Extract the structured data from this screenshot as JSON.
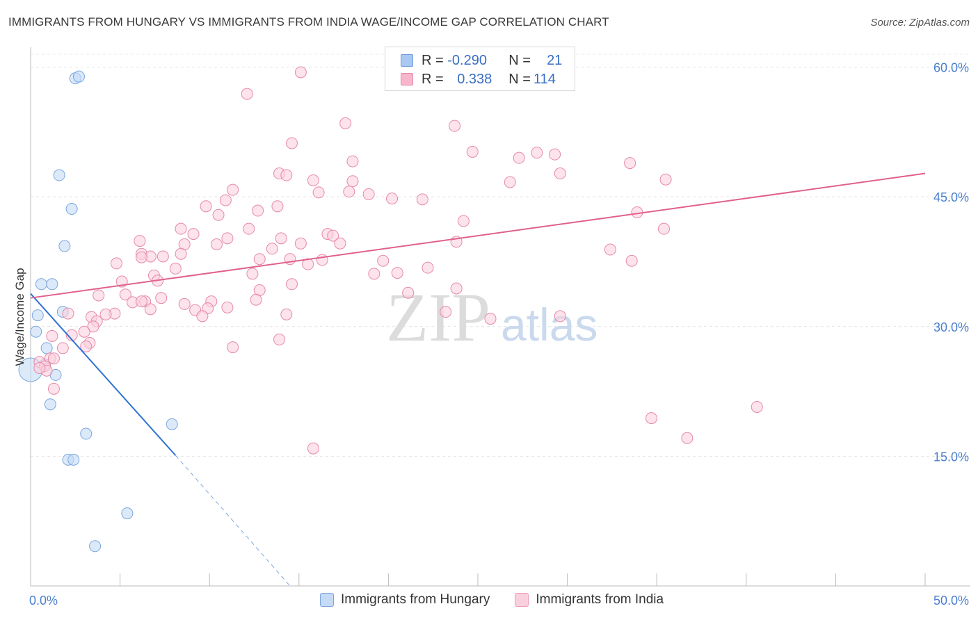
{
  "title": "IMMIGRANTS FROM HUNGARY VS IMMIGRANTS FROM INDIA WAGE/INCOME GAP CORRELATION CHART",
  "source": "Source: ZipAtlas.com",
  "watermark": {
    "zip": "ZIP",
    "atlas": "atlas"
  },
  "legend_top": {
    "rows": [
      {
        "r_label": "R =",
        "r_value": "-0.290",
        "n_label": "N =",
        "n_value": "21",
        "color": "#a9c8f2",
        "border": "#6b9ad8"
      },
      {
        "r_label": "R =",
        "r_value": "0.338",
        "n_label": "N =",
        "n_value": "114",
        "color": "#f7b6cb",
        "border": "#e58aa8"
      }
    ]
  },
  "legend_bottom": [
    {
      "label": "Immigrants from Hungary",
      "color": "#c5daf5",
      "border": "#7da6dd"
    },
    {
      "label": "Immigrants from India",
      "color": "#fbd0de",
      "border": "#eb9ab5"
    }
  ],
  "chart_data": {
    "type": "scatter",
    "title": "IMMIGRANTS FROM HUNGARY VS IMMIGRANTS FROM INDIA WAGE/INCOME GAP CORRELATION CHART",
    "xlabel": "",
    "ylabel": "Wage/Income Gap",
    "xlim": [
      0,
      50
    ],
    "ylim": [
      0,
      63
    ],
    "x_tick_labels": [
      "0.0%",
      "50.0%"
    ],
    "y_tick_labels": [
      "15.0%",
      "30.0%",
      "45.0%",
      "60.0%"
    ],
    "y_tick_values": [
      15,
      30,
      45,
      60
    ],
    "grid": true,
    "series": [
      {
        "name": "Immigrants from Hungary",
        "color": "#7aa7e0",
        "fill": "#c5daf5",
        "points": [
          [
            2.5,
            58.7
          ],
          [
            2.7,
            58.9
          ],
          [
            1.6,
            47.5
          ],
          [
            2.3,
            43.6
          ],
          [
            1.9,
            39.3
          ],
          [
            0.6,
            34.9
          ],
          [
            1.2,
            34.9
          ],
          [
            0.4,
            31.3
          ],
          [
            1.8,
            31.7
          ],
          [
            0.3,
            29.4
          ],
          [
            0.9,
            27.5
          ],
          [
            0.8,
            25.6
          ],
          [
            0.0,
            25.0
          ],
          [
            1.4,
            24.4
          ],
          [
            1.1,
            21.0
          ],
          [
            7.9,
            18.7
          ],
          [
            3.1,
            17.6
          ],
          [
            2.1,
            14.6
          ],
          [
            2.4,
            14.6
          ],
          [
            5.4,
            8.4
          ],
          [
            3.6,
            4.6
          ]
        ],
        "trend": {
          "x0": 0.0,
          "y0": 33.8,
          "x1": 8.1,
          "y1": 15.1,
          "dash_to_x": 14.5,
          "dash_to_y": 0.0
        }
      },
      {
        "name": "Immigrants from India",
        "color": "#e58aa8",
        "fill": "#fbd0de",
        "points": [
          [
            15.1,
            59.4
          ],
          [
            12.1,
            56.9
          ],
          [
            17.6,
            53.5
          ],
          [
            23.7,
            53.2
          ],
          [
            14.6,
            51.2
          ],
          [
            24.7,
            50.2
          ],
          [
            28.3,
            50.1
          ],
          [
            29.3,
            49.9
          ],
          [
            27.3,
            49.5
          ],
          [
            18.0,
            49.1
          ],
          [
            33.5,
            48.9
          ],
          [
            13.9,
            47.7
          ],
          [
            14.3,
            47.5
          ],
          [
            29.6,
            47.7
          ],
          [
            15.8,
            46.9
          ],
          [
            18.0,
            46.8
          ],
          [
            35.5,
            47.0
          ],
          [
            26.8,
            46.7
          ],
          [
            11.3,
            45.8
          ],
          [
            16.1,
            45.5
          ],
          [
            17.8,
            45.6
          ],
          [
            18.9,
            45.3
          ],
          [
            20.2,
            44.8
          ],
          [
            21.9,
            44.7
          ],
          [
            10.9,
            44.6
          ],
          [
            9.8,
            43.9
          ],
          [
            13.8,
            43.9
          ],
          [
            12.7,
            43.4
          ],
          [
            33.9,
            43.2
          ],
          [
            10.5,
            42.9
          ],
          [
            24.2,
            42.2
          ],
          [
            35.4,
            41.3
          ],
          [
            8.4,
            41.3
          ],
          [
            12.2,
            41.3
          ],
          [
            9.1,
            40.7
          ],
          [
            16.6,
            40.7
          ],
          [
            16.9,
            40.5
          ],
          [
            14.0,
            40.2
          ],
          [
            11.0,
            40.2
          ],
          [
            6.1,
            39.9
          ],
          [
            15.1,
            39.6
          ],
          [
            17.3,
            39.6
          ],
          [
            10.4,
            39.5
          ],
          [
            8.6,
            39.5
          ],
          [
            23.8,
            39.8
          ],
          [
            13.5,
            39.0
          ],
          [
            32.4,
            38.9
          ],
          [
            6.2,
            38.4
          ],
          [
            8.4,
            38.4
          ],
          [
            7.4,
            38.1
          ],
          [
            6.7,
            38.1
          ],
          [
            12.8,
            37.8
          ],
          [
            14.5,
            37.8
          ],
          [
            16.3,
            37.7
          ],
          [
            19.7,
            37.6
          ],
          [
            15.5,
            37.2
          ],
          [
            33.6,
            37.6
          ],
          [
            4.8,
            37.3
          ],
          [
            8.1,
            36.7
          ],
          [
            22.2,
            36.8
          ],
          [
            12.4,
            36.1
          ],
          [
            19.2,
            36.1
          ],
          [
            20.5,
            36.2
          ],
          [
            6.9,
            35.9
          ],
          [
            5.1,
            35.2
          ],
          [
            7.1,
            35.3
          ],
          [
            14.6,
            34.9
          ],
          [
            23.8,
            34.4
          ],
          [
            12.8,
            34.2
          ],
          [
            21.1,
            33.9
          ],
          [
            3.8,
            33.6
          ],
          [
            5.3,
            33.7
          ],
          [
            7.3,
            33.3
          ],
          [
            12.6,
            33.1
          ],
          [
            10.1,
            32.9
          ],
          [
            5.7,
            32.8
          ],
          [
            6.4,
            32.9
          ],
          [
            8.6,
            32.6
          ],
          [
            11.0,
            32.2
          ],
          [
            9.9,
            32.1
          ],
          [
            9.2,
            31.9
          ],
          [
            4.7,
            31.5
          ],
          [
            4.2,
            31.4
          ],
          [
            2.1,
            31.5
          ],
          [
            6.2,
            32.9
          ],
          [
            9.6,
            31.2
          ],
          [
            14.3,
            31.4
          ],
          [
            6.7,
            32.0
          ],
          [
            3.4,
            31.1
          ],
          [
            3.7,
            30.6
          ],
          [
            23.2,
            31.7
          ],
          [
            29.6,
            31.2
          ],
          [
            25.7,
            30.9
          ],
          [
            3.5,
            30.0
          ],
          [
            3.0,
            29.4
          ],
          [
            2.3,
            29.0
          ],
          [
            1.2,
            28.9
          ],
          [
            3.3,
            28.1
          ],
          [
            3.1,
            27.7
          ],
          [
            11.3,
            27.6
          ],
          [
            13.9,
            28.5
          ],
          [
            1.8,
            27.5
          ],
          [
            1.1,
            26.3
          ],
          [
            1.3,
            26.3
          ],
          [
            0.5,
            25.9
          ],
          [
            0.8,
            25.4
          ],
          [
            0.9,
            24.9
          ],
          [
            0.5,
            25.2
          ],
          [
            1.3,
            22.8
          ],
          [
            40.6,
            20.7
          ],
          [
            34.7,
            19.4
          ],
          [
            36.7,
            17.1
          ],
          [
            15.8,
            15.9
          ],
          [
            6.2,
            38.0
          ]
        ],
        "trend": {
          "x0": 0.0,
          "y0": 33.3,
          "x1": 50.0,
          "y1": 47.7
        }
      }
    ]
  }
}
